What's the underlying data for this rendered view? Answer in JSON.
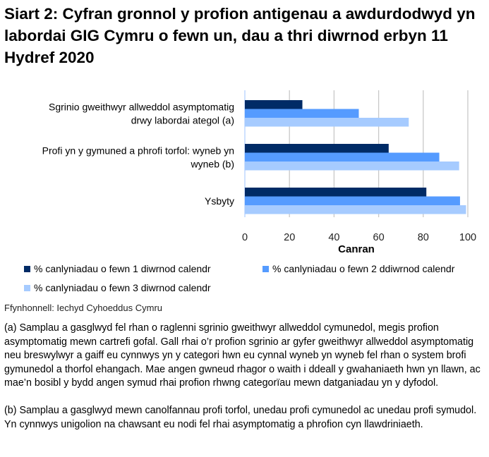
{
  "chart_data": {
    "type": "bar",
    "orientation": "horizontal",
    "title": "Siart 2: Cyfran gronnol y profion antigenau a awdurdodwyd yn labordai GIG Cymru o fewn un, dau a thri diwrnod erbyn 11 Hydref 2020",
    "categories": [
      [
        "Sgrinio gweithwyr allweddol asymptomatig",
        "drwy labordai ategol (a)"
      ],
      [
        "Profi yn y gymuned a phrofi torfol: wyneb yn",
        "wyneb (b)"
      ],
      [
        "Ysbyty"
      ]
    ],
    "series": [
      {
        "name": "% canlyniadau o fewn 1 diwrnod calendr",
        "color": "#002B66",
        "values": [
          25.8,
          64.5,
          81.4
        ]
      },
      {
        "name": "% canlyniadau o fewn 2 ddiwrnod calendr",
        "color": "#559BFF",
        "values": [
          51.1,
          87.2,
          96.5
        ]
      },
      {
        "name": "% canlyniadau o fewn 3 diwrnod calendr",
        "color": "#A6CBFF",
        "values": [
          73.5,
          96.1,
          99.2
        ]
      }
    ],
    "xlabel": "Canran",
    "ylabel": "",
    "xlim": [
      0,
      100
    ],
    "ticks": [
      "0",
      "20",
      "40",
      "60",
      "80",
      "100"
    ],
    "grid": true,
    "legend": "bottom"
  },
  "source": "Ffynhonnell: Iechyd Cyhoeddus Cymru",
  "notes": [
    "(a) Samplau a gasglwyd fel rhan o raglenni sgrinio gweithwyr allweddol cymunedol, megis profion asymptomatig mewn cartrefi gofal. Gall rhai o’r profion sgrinio ar gyfer gweithwyr allweddol asymptomatig neu breswylwyr a gaiff eu cynnwys yn y categori hwn eu cynnal wyneb yn wyneb fel rhan o system brofi gymunedol a thorfol ehangach. Mae angen gwneud rhagor o waith i ddeall y gwahaniaeth hwn yn llawn, ac mae’n bosibl y bydd angen symud rhai profion rhwng categorïau mewn datganiadau yn y dyfodol.",
    "(b) Samplau a gasglwyd mewn canolfannau profi torfol, unedau profi cymunedol ac unedau profi symudol. Yn cynnwys unigolion na chawsant eu nodi fel rhai asymptomatig a phrofion cyn llawdriniaeth."
  ]
}
